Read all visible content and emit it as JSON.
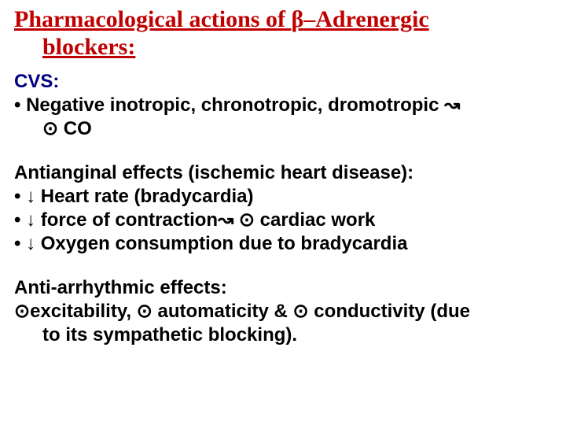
{
  "colors": {
    "title": "#c00000",
    "section_head": "#000080",
    "body": "#000000",
    "background": "#ffffff"
  },
  "fonts": {
    "title_family": "Comic Sans MS",
    "body_family": "Arial",
    "title_size_pt": 30,
    "body_size_pt": 24
  },
  "title": {
    "line1_a": "Pharmacological actions of ",
    "beta": "β",
    "line1_b": "–Adrenergic",
    "line2": "blockers:"
  },
  "cvs": {
    "head": "CVS:",
    "l1": "•  Negative inotropic, chronotropic, dromotropic ↝",
    "l2": "⊙ CO"
  },
  "antianginal": {
    "head": "Antianginal effects (ischemic heart disease):",
    "l1": "•  ↓ Heart rate (bradycardia)",
    "l2": "•  ↓ force of contraction↝ ⊙ cardiac work",
    "l3": "•  ↓ Oxygen consumption due to bradycardia"
  },
  "antiarr": {
    "head": "Anti-arrhythmic effects:",
    "l1": "⊙excitability, ⊙ automaticity & ⊙ conductivity (due",
    "l2": "to its sympathetic blocking)."
  }
}
